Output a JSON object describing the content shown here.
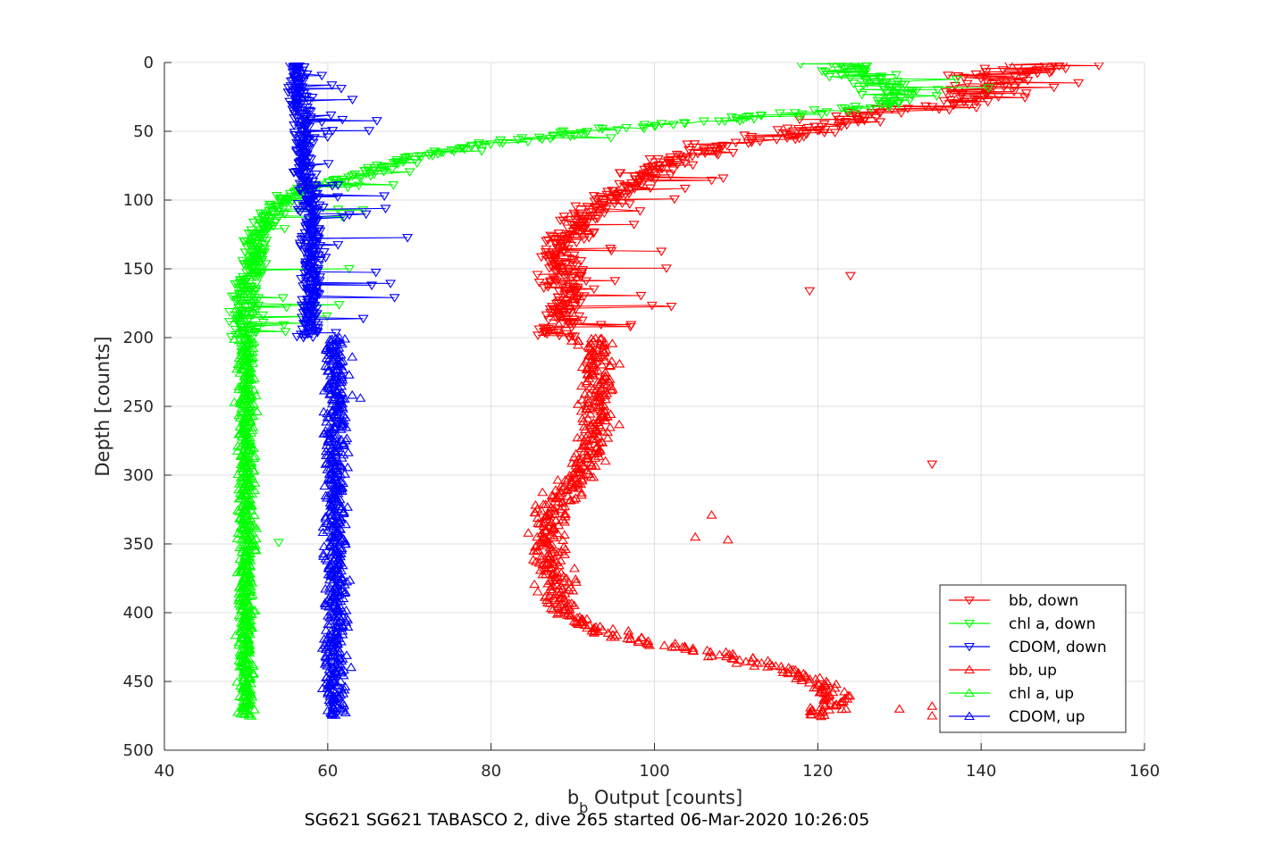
{
  "chart_data": {
    "type": "line",
    "title": "SG621 SG621 TABASCO 2, dive 265 started 06-Mar-2020 10:26:05",
    "xlabel_main": "b",
    "xlabel_sub": "b",
    "xlabel_rest": " Output [counts]",
    "ylabel": "Depth [counts]",
    "xlim": [
      40,
      160
    ],
    "ylim": [
      0,
      500
    ],
    "y_reversed": true,
    "grid": true,
    "legend_position": "bottom-right",
    "x_ticks": [
      "40",
      "60",
      "80",
      "100",
      "120",
      "140",
      "160"
    ],
    "y_ticks": [
      "0",
      "50",
      "100",
      "150",
      "200",
      "250",
      "300",
      "350",
      "400",
      "450",
      "500"
    ],
    "series": [
      {
        "name": "bb, down",
        "color": "#ff0000",
        "marker": "triangle-down",
        "connected": true,
        "profile": [
          [
            0,
            150
          ],
          [
            10,
            140
          ],
          [
            20,
            143
          ],
          [
            25,
            140
          ],
          [
            30,
            138
          ],
          [
            40,
            125
          ],
          [
            50,
            118
          ],
          [
            60,
            108
          ],
          [
            70,
            102
          ],
          [
            80,
            99
          ],
          [
            90,
            97
          ],
          [
            100,
            94
          ],
          [
            110,
            92
          ],
          [
            120,
            90
          ],
          [
            130,
            89
          ],
          [
            140,
            88
          ],
          [
            150,
            89
          ],
          [
            160,
            89
          ],
          [
            170,
            90
          ],
          [
            180,
            89
          ],
          [
            190,
            89
          ],
          [
            200,
            88
          ]
        ]
      },
      {
        "name": "chl a, down",
        "color": "#00ff00",
        "marker": "triangle-down",
        "connected": true,
        "profile": [
          [
            0,
            122
          ],
          [
            10,
            125
          ],
          [
            20,
            130
          ],
          [
            30,
            130
          ],
          [
            40,
            112
          ],
          [
            50,
            92
          ],
          [
            60,
            78
          ],
          [
            70,
            70
          ],
          [
            80,
            65
          ],
          [
            90,
            58
          ],
          [
            100,
            55
          ],
          [
            110,
            53
          ],
          [
            120,
            52
          ],
          [
            130,
            51
          ],
          [
            140,
            51
          ],
          [
            150,
            51
          ],
          [
            160,
            50
          ],
          [
            170,
            50
          ],
          [
            180,
            50
          ],
          [
            190,
            50
          ],
          [
            200,
            50
          ]
        ]
      },
      {
        "name": "CDOM, down",
        "color": "#0000ff",
        "marker": "triangle-down",
        "connected": true,
        "profile": [
          [
            0,
            56
          ],
          [
            20,
            56
          ],
          [
            40,
            57
          ],
          [
            60,
            57
          ],
          [
            80,
            57
          ],
          [
            100,
            58
          ],
          [
            120,
            58
          ],
          [
            140,
            58
          ],
          [
            160,
            58
          ],
          [
            180,
            58
          ],
          [
            200,
            58
          ]
        ]
      },
      {
        "name": "bb, up",
        "color": "#ff0000",
        "marker": "triangle-up",
        "connected": false,
        "profile": [
          [
            200,
            92
          ],
          [
            220,
            93
          ],
          [
            240,
            93
          ],
          [
            260,
            93
          ],
          [
            280,
            92
          ],
          [
            300,
            91
          ],
          [
            320,
            88
          ],
          [
            340,
            87
          ],
          [
            360,
            87
          ],
          [
            380,
            88
          ],
          [
            400,
            89
          ],
          [
            410,
            92
          ],
          [
            420,
            98
          ],
          [
            430,
            108
          ],
          [
            440,
            115
          ],
          [
            450,
            120
          ],
          [
            460,
            122
          ],
          [
            470,
            121
          ],
          [
            475,
            120
          ]
        ]
      },
      {
        "name": "chl a, up",
        "color": "#00ff00",
        "marker": "triangle-up",
        "connected": false,
        "profile": [
          [
            200,
            50
          ],
          [
            250,
            50
          ],
          [
            300,
            50
          ],
          [
            350,
            50
          ],
          [
            400,
            50
          ],
          [
            450,
            50
          ],
          [
            475,
            50
          ]
        ]
      },
      {
        "name": "CDOM, up",
        "color": "#0000ff",
        "marker": "triangle-up",
        "connected": false,
        "profile": [
          [
            200,
            61
          ],
          [
            250,
            61
          ],
          [
            300,
            61
          ],
          [
            350,
            61
          ],
          [
            400,
            61
          ],
          [
            450,
            61
          ],
          [
            475,
            61
          ]
        ]
      }
    ],
    "outliers": [
      {
        "series": "bb, down",
        "x": 124,
        "y": 155
      },
      {
        "series": "bb, down",
        "x": 119,
        "y": 166
      },
      {
        "series": "bb, down",
        "x": 134,
        "y": 292
      },
      {
        "series": "bb, up",
        "x": 107,
        "y": 329
      },
      {
        "series": "bb, up",
        "x": 105,
        "y": 345
      },
      {
        "series": "bb, up",
        "x": 109,
        "y": 347
      },
      {
        "series": "bb, up",
        "x": 134,
        "y": 468
      },
      {
        "series": "bb, up",
        "x": 134,
        "y": 475
      },
      {
        "series": "bb, up",
        "x": 130,
        "y": 470
      },
      {
        "series": "CDOM, up",
        "x": 64,
        "y": 244
      },
      {
        "series": "chl a, down",
        "x": 54,
        "y": 349
      }
    ]
  }
}
